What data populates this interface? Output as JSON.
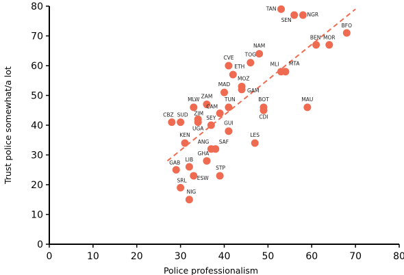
{
  "chart_data": {
    "type": "scatter",
    "xlabel": "Police professionalism",
    "ylabel": "Trust police somewhat/a lot",
    "xlim": [
      0,
      80
    ],
    "ylim": [
      0,
      80
    ],
    "xticks": [
      0,
      10,
      20,
      30,
      40,
      50,
      60,
      70,
      80
    ],
    "yticks": [
      0,
      10,
      20,
      30,
      40,
      50,
      60,
      70,
      80
    ],
    "grid": false,
    "marker_color": "#ee6a50",
    "trendline_color": "#ee6a50",
    "trendline": {
      "x": [
        27,
        70
      ],
      "y": [
        28,
        79
      ]
    },
    "points": [
      {
        "label": "TAN",
        "x": 53,
        "y": 79
      },
      {
        "label": "SEN",
        "x": 56,
        "y": 77
      },
      {
        "label": "NGR",
        "x": 58,
        "y": 77
      },
      {
        "label": "BFO",
        "x": 68,
        "y": 71
      },
      {
        "label": "BEN",
        "x": 61,
        "y": 67
      },
      {
        "label": "MOR",
        "x": 64,
        "y": 67
      },
      {
        "label": "NAM",
        "x": 48,
        "y": 64
      },
      {
        "label": "TOG",
        "x": 46,
        "y": 61
      },
      {
        "label": "CVE",
        "x": 41,
        "y": 60
      },
      {
        "label": "ETH",
        "x": 42,
        "y": 57
      },
      {
        "label": "MLI",
        "x": 53,
        "y": 58
      },
      {
        "label": "MTA",
        "x": 54,
        "y": 58
      },
      {
        "label": "MAD",
        "x": 40,
        "y": 51
      },
      {
        "label": "MOZ",
        "x": 44,
        "y": 53
      },
      {
        "label": "GAM",
        "x": 44,
        "y": 52
      },
      {
        "label": "MLW",
        "x": 33,
        "y": 46
      },
      {
        "label": "ZAM",
        "x": 36,
        "y": 47
      },
      {
        "label": "TUN",
        "x": 41,
        "y": 46
      },
      {
        "label": "BOT",
        "x": 49,
        "y": 46
      },
      {
        "label": "MAU",
        "x": 59,
        "y": 46
      },
      {
        "label": "CAM",
        "x": 39,
        "y": 44
      },
      {
        "label": "CDI",
        "x": 49,
        "y": 45
      },
      {
        "label": "CBZ",
        "x": 28,
        "y": 41
      },
      {
        "label": "SUD",
        "x": 30,
        "y": 41
      },
      {
        "label": "ZIM",
        "x": 34,
        "y": 42
      },
      {
        "label": "UGA",
        "x": 34,
        "y": 41
      },
      {
        "label": "SEY",
        "x": 37,
        "y": 40
      },
      {
        "label": "GUI",
        "x": 41,
        "y": 38
      },
      {
        "label": "KEN",
        "x": 31,
        "y": 34
      },
      {
        "label": "ANG",
        "x": 37,
        "y": 32
      },
      {
        "label": "SAF",
        "x": 38,
        "y": 32
      },
      {
        "label": "LES",
        "x": 47,
        "y": 34
      },
      {
        "label": "GHA",
        "x": 36,
        "y": 28
      },
      {
        "label": "GAB",
        "x": 29,
        "y": 25
      },
      {
        "label": "LIB",
        "x": 32,
        "y": 26
      },
      {
        "label": "ESW",
        "x": 33,
        "y": 23
      },
      {
        "label": "STP",
        "x": 39,
        "y": 23
      },
      {
        "label": "SRL",
        "x": 30,
        "y": 19
      },
      {
        "label": "NIG",
        "x": 32,
        "y": 15
      }
    ]
  }
}
